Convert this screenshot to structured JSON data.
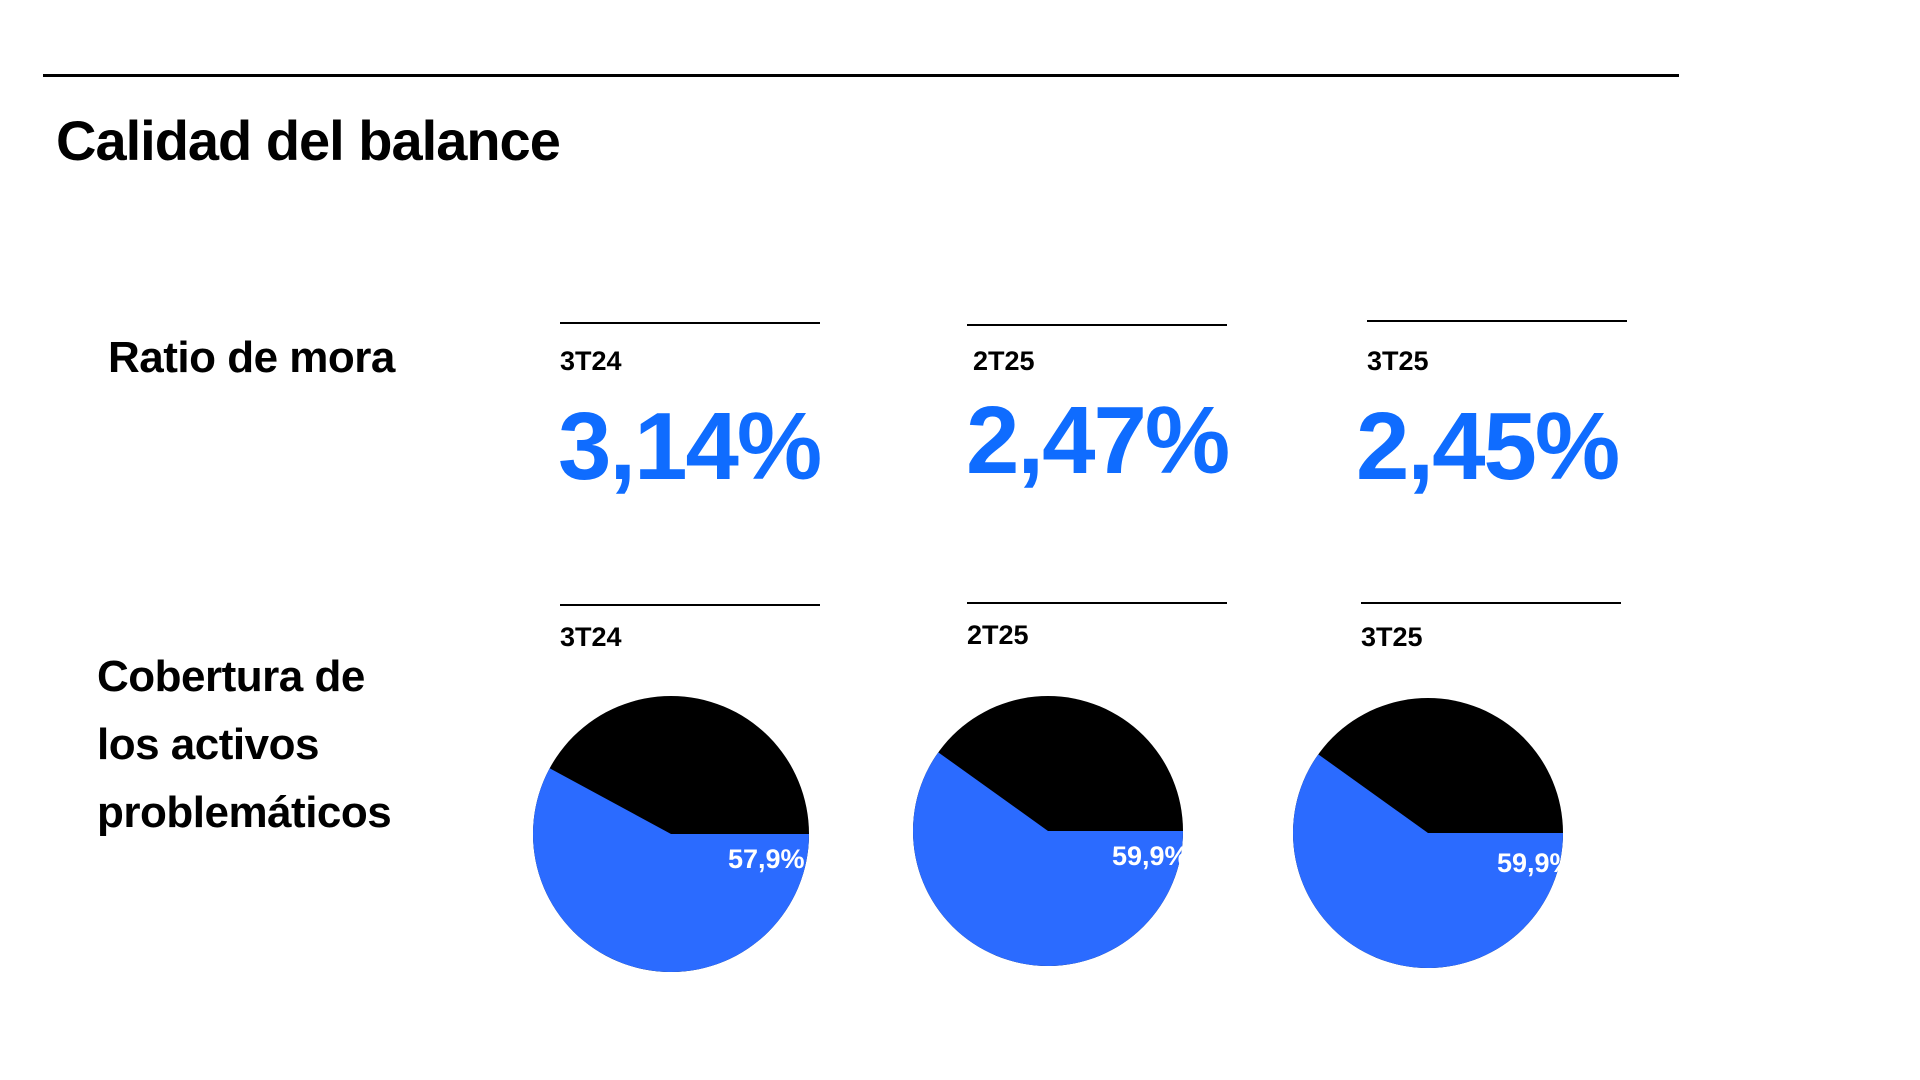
{
  "title": "Calidad del balance",
  "ratio_de_mora": {
    "label": "Ratio de mora",
    "items": [
      {
        "period": "3T24",
        "value": "3,14%"
      },
      {
        "period": "2T25",
        "value": "2,47%"
      },
      {
        "period": "3T25",
        "value": "2,45%"
      }
    ]
  },
  "cobertura": {
    "label_lines": [
      "Cobertura de",
      "los activos",
      "problemáticos"
    ]
  },
  "colors": {
    "blue_text": "#0f6cff",
    "pie_blue": "#2b6bff",
    "pie_black": "#000000"
  },
  "chart_data": {
    "type": "pie",
    "title": "Cobertura de los activos problemáticos",
    "charts": [
      {
        "period": "3T24",
        "value": 57.9,
        "label": "57,9%"
      },
      {
        "period": "2T25",
        "value": 59.9,
        "label": "59,9%"
      },
      {
        "period": "3T25",
        "value": 59.9,
        "label": "59,9%"
      }
    ]
  }
}
